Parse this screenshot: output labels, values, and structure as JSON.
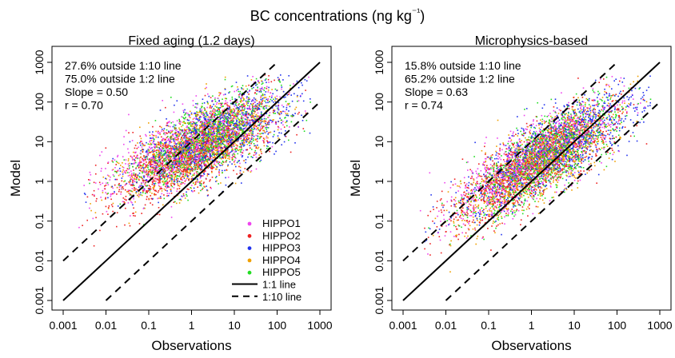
{
  "figure_title": "BC concentrations (ng kg⁻¹)",
  "series_colors": {
    "HIPPO1": "#ee44ee",
    "HIPPO2": "#ee2222",
    "HIPPO3": "#2233ee",
    "HIPPO4": "#f0a000",
    "HIPPO5": "#22dd22"
  },
  "chart_data": [
    {
      "type": "scatter",
      "title": "Fixed aging (1.2 days)",
      "xlabel": "Observations",
      "ylabel": "Model",
      "x_scale": "log",
      "y_scale": "log",
      "xlim": [
        0.001,
        1000
      ],
      "ylim": [
        0.001,
        1000
      ],
      "x_ticks": [
        "0.001",
        "0.01",
        "0.1",
        "1",
        "10",
        "100",
        "1000"
      ],
      "y_ticks": [
        "0.001",
        "0.01",
        "0.1",
        "1",
        "10",
        "100",
        "1000"
      ],
      "grid": false,
      "legend_position": "bottom-right",
      "stats": [
        "27.6% outside 1:10 line",
        "75.0% outside 1:2 line",
        "Slope = 0.50",
        "r = 0.70"
      ],
      "stats_values": {
        "outside_1_10_pct": 27.6,
        "outside_1_2_pct": 75.0,
        "slope": 0.5,
        "r": 0.7
      },
      "reference_lines": [
        {
          "name": "1:1 line",
          "style": "solid",
          "factor": 1
        },
        {
          "name": "1:10 line",
          "style": "dashed",
          "factor": 10
        },
        {
          "name": "1:10 line",
          "style": "dashed",
          "factor": 0.1
        }
      ],
      "series": [
        {
          "name": "HIPPO1",
          "color": "#ee44ee",
          "center_log_obs": 0.0,
          "center_log_model": 0.9,
          "spread_log": 1.0,
          "slope": 0.5
        },
        {
          "name": "HIPPO2",
          "color": "#ee2222",
          "center_log_obs": 0.0,
          "center_log_model": 0.7,
          "spread_log": 1.0,
          "slope": 0.5
        },
        {
          "name": "HIPPO3",
          "color": "#2233ee",
          "center_log_obs": 0.5,
          "center_log_model": 1.1,
          "spread_log": 1.0,
          "slope": 0.5
        },
        {
          "name": "HIPPO4",
          "color": "#f0a000",
          "center_log_obs": 0.2,
          "center_log_model": 0.9,
          "spread_log": 0.9,
          "slope": 0.5
        },
        {
          "name": "HIPPO5",
          "color": "#22dd22",
          "center_log_obs": 0.3,
          "center_log_model": 1.0,
          "spread_log": 0.8,
          "slope": 0.5
        }
      ],
      "legend": [
        {
          "label": "HIPPO1",
          "kind": "point",
          "color": "#ee44ee"
        },
        {
          "label": "HIPPO2",
          "kind": "point",
          "color": "#ee2222"
        },
        {
          "label": "HIPPO3",
          "kind": "point",
          "color": "#2233ee"
        },
        {
          "label": "HIPPO4",
          "kind": "point",
          "color": "#f0a000"
        },
        {
          "label": "HIPPO5",
          "kind": "point",
          "color": "#22dd22"
        },
        {
          "label": "1:1 line",
          "kind": "solid"
        },
        {
          "label": "1:10 line",
          "kind": "dashed"
        }
      ]
    },
    {
      "type": "scatter",
      "title": "Microphysics-based",
      "xlabel": "Observations",
      "ylabel": "Model",
      "x_scale": "log",
      "y_scale": "log",
      "xlim": [
        0.001,
        1000
      ],
      "ylim": [
        0.001,
        1000
      ],
      "x_ticks": [
        "0.001",
        "0.01",
        "0.1",
        "1",
        "10",
        "100",
        "1000"
      ],
      "y_ticks": [
        "0.001",
        "0.01",
        "0.1",
        "1",
        "10",
        "100",
        "1000"
      ],
      "grid": false,
      "stats": [
        "15.8% outside 1:10 line",
        "65.2% outside 1:2 line",
        "Slope = 0.63",
        "r = 0.74"
      ],
      "stats_values": {
        "outside_1_10_pct": 15.8,
        "outside_1_2_pct": 65.2,
        "slope": 0.63,
        "r": 0.74
      },
      "reference_lines": [
        {
          "name": "1:1 line",
          "style": "solid",
          "factor": 1
        },
        {
          "name": "1:10 line",
          "style": "dashed",
          "factor": 10
        },
        {
          "name": "1:10 line",
          "style": "dashed",
          "factor": 0.1
        }
      ],
      "series": [
        {
          "name": "HIPPO1",
          "color": "#ee44ee",
          "center_log_obs": 0.0,
          "center_log_model": 0.5,
          "spread_log": 1.0,
          "slope": 0.63
        },
        {
          "name": "HIPPO2",
          "color": "#ee2222",
          "center_log_obs": 0.0,
          "center_log_model": 0.4,
          "spread_log": 1.0,
          "slope": 0.63
        },
        {
          "name": "HIPPO3",
          "color": "#2233ee",
          "center_log_obs": 0.5,
          "center_log_model": 0.8,
          "spread_log": 1.0,
          "slope": 0.63
        },
        {
          "name": "HIPPO4",
          "color": "#f0a000",
          "center_log_obs": 0.2,
          "center_log_model": 0.5,
          "spread_log": 0.9,
          "slope": 0.63
        },
        {
          "name": "HIPPO5",
          "color": "#22dd22",
          "center_log_obs": 0.3,
          "center_log_model": 0.6,
          "spread_log": 0.8,
          "slope": 0.63
        }
      ]
    }
  ]
}
